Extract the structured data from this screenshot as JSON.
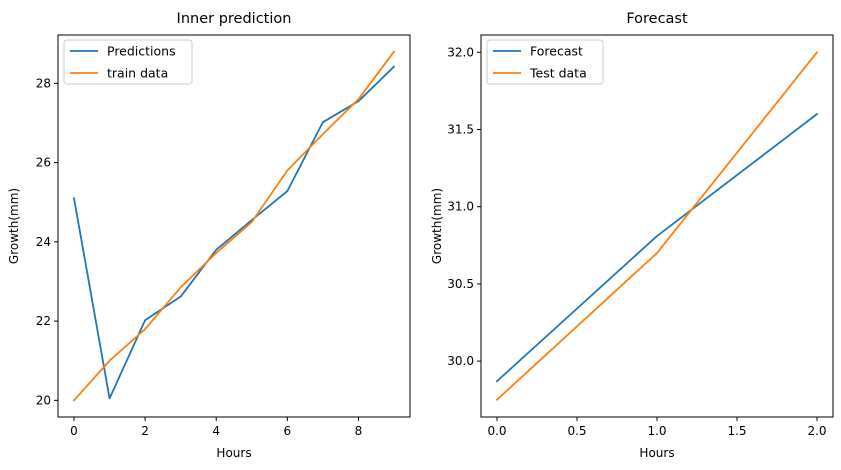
{
  "chart_data": [
    {
      "type": "line",
      "title": "Inner prediction",
      "xlabel": "Hours",
      "ylabel": "Growth(mm)",
      "xlim": [
        -0.45,
        9.45
      ],
      "ylim": [
        19.58,
        29.22
      ],
      "xticks": [
        0,
        2,
        4,
        6,
        8
      ],
      "yticks": [
        20,
        22,
        24,
        26,
        28
      ],
      "xtick_labels": [
        "0",
        "2",
        "4",
        "6",
        "8"
      ],
      "ytick_labels": [
        "20",
        "22",
        "24",
        "26",
        "28"
      ],
      "grid": false,
      "legend_position": "upper left",
      "series": [
        {
          "name": "Predictions",
          "color": "#1f77b4",
          "x": [
            0,
            1,
            2,
            3,
            4,
            5,
            6,
            7,
            8,
            9
          ],
          "y": [
            25.1,
            20.05,
            22.02,
            22.62,
            23.8,
            24.55,
            25.28,
            27.02,
            27.55,
            28.42
          ]
        },
        {
          "name": "train data",
          "color": "#ff7f0e",
          "x": [
            0,
            1,
            2,
            3,
            4,
            5,
            6,
            7,
            8,
            9
          ],
          "y": [
            20.0,
            21.0,
            21.8,
            22.85,
            23.72,
            24.5,
            25.8,
            26.72,
            27.6,
            28.8
          ]
        }
      ]
    },
    {
      "type": "line",
      "title": "Forecast",
      "xlabel": "Hours",
      "ylabel": "Growth(mm)",
      "xlim": [
        -0.1,
        2.1
      ],
      "ylim": [
        29.638,
        32.112
      ],
      "xticks": [
        0.0,
        0.5,
        1.0,
        1.5,
        2.0
      ],
      "yticks": [
        30.0,
        30.5,
        31.0,
        31.5,
        32.0
      ],
      "xtick_labels": [
        "0.0",
        "0.5",
        "1.0",
        "1.5",
        "2.0"
      ],
      "ytick_labels": [
        "30.0",
        "30.5",
        "31.0",
        "31.5",
        "32.0"
      ],
      "grid": false,
      "legend_position": "upper left",
      "series": [
        {
          "name": "Forecast",
          "color": "#1f77b4",
          "x": [
            0,
            1,
            2
          ],
          "y": [
            29.87,
            30.81,
            31.6
          ]
        },
        {
          "name": "Test data",
          "color": "#ff7f0e",
          "x": [
            0,
            1,
            2
          ],
          "y": [
            29.75,
            30.7,
            32.0
          ]
        }
      ]
    }
  ]
}
